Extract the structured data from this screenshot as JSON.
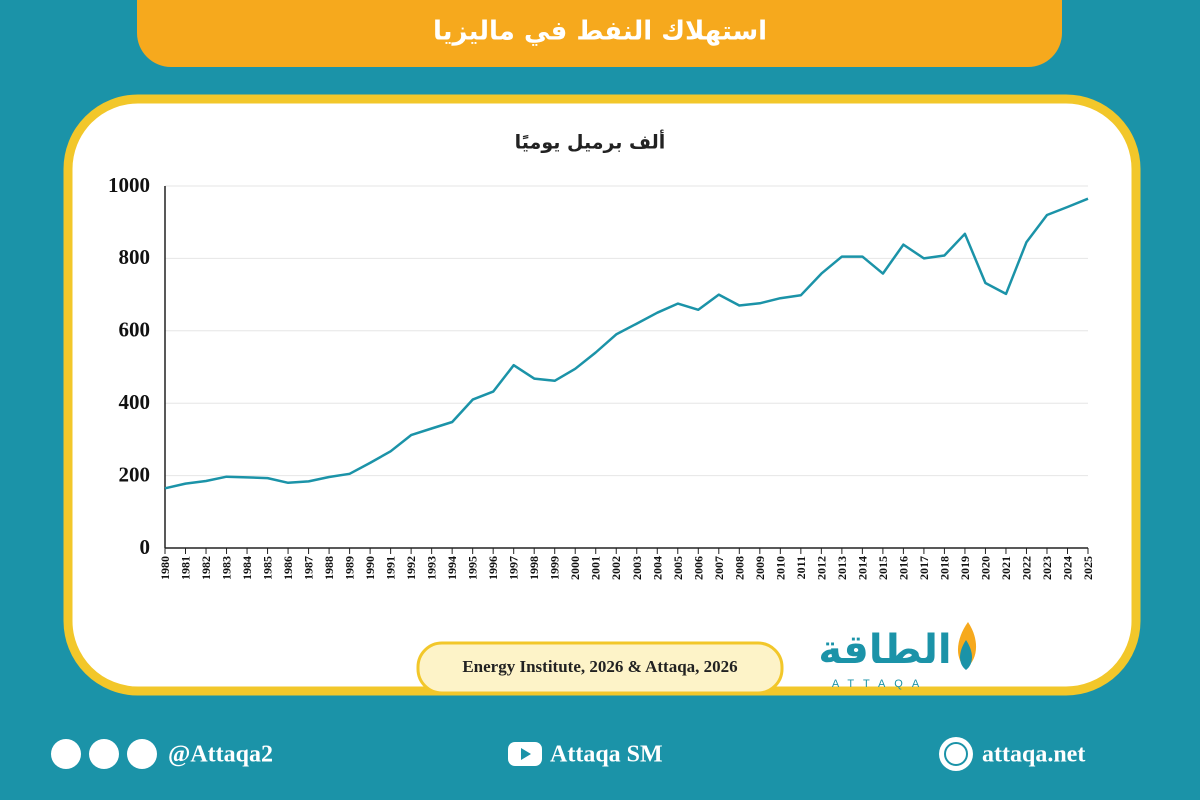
{
  "chart_data": {
    "type": "line",
    "title": "استهلاك النفط في ماليزيا",
    "ylabel": "ألف برميل يوميًا",
    "source": "Energy Institute, 2026 & Attaqa, 2026",
    "categories": [
      "1980",
      "1981",
      "1982",
      "1983",
      "1984",
      "1985",
      "1986",
      "1987",
      "1988",
      "1989",
      "1990",
      "1991",
      "1992",
      "1993",
      "1994",
      "1995",
      "1996",
      "1997",
      "1998",
      "1999",
      "2000",
      "2001",
      "2002",
      "2003",
      "2004",
      "2005",
      "2006",
      "2007",
      "2008",
      "2009",
      "2010",
      "2011",
      "2012",
      "2013",
      "2014",
      "2015",
      "2016",
      "2017",
      "2018",
      "2019",
      "2020",
      "2021",
      "2022",
      "2023",
      "2024",
      "2025"
    ],
    "values": [
      165,
      178,
      185,
      197,
      195,
      193,
      180,
      184,
      196,
      205,
      235,
      267,
      312,
      330,
      348,
      410,
      432,
      505,
      468,
      462,
      495,
      540,
      590,
      620,
      650,
      675,
      658,
      700,
      670,
      676,
      690,
      698,
      758,
      805,
      805,
      758,
      838,
      800,
      808,
      868,
      732,
      702,
      845,
      920,
      942,
      965
    ],
    "color": "#1b93a8",
    "ylim": [
      0,
      1000
    ],
    "yticks": [
      0,
      200,
      400,
      600,
      800,
      1000
    ],
    "grid": true
  },
  "logo": {
    "arabic": "الطاقة",
    "latin": "ATTAQA"
  },
  "footer": {
    "handle": "@Attaqa2",
    "youtube": "Attaqa SM",
    "website": "attaqa.net"
  }
}
